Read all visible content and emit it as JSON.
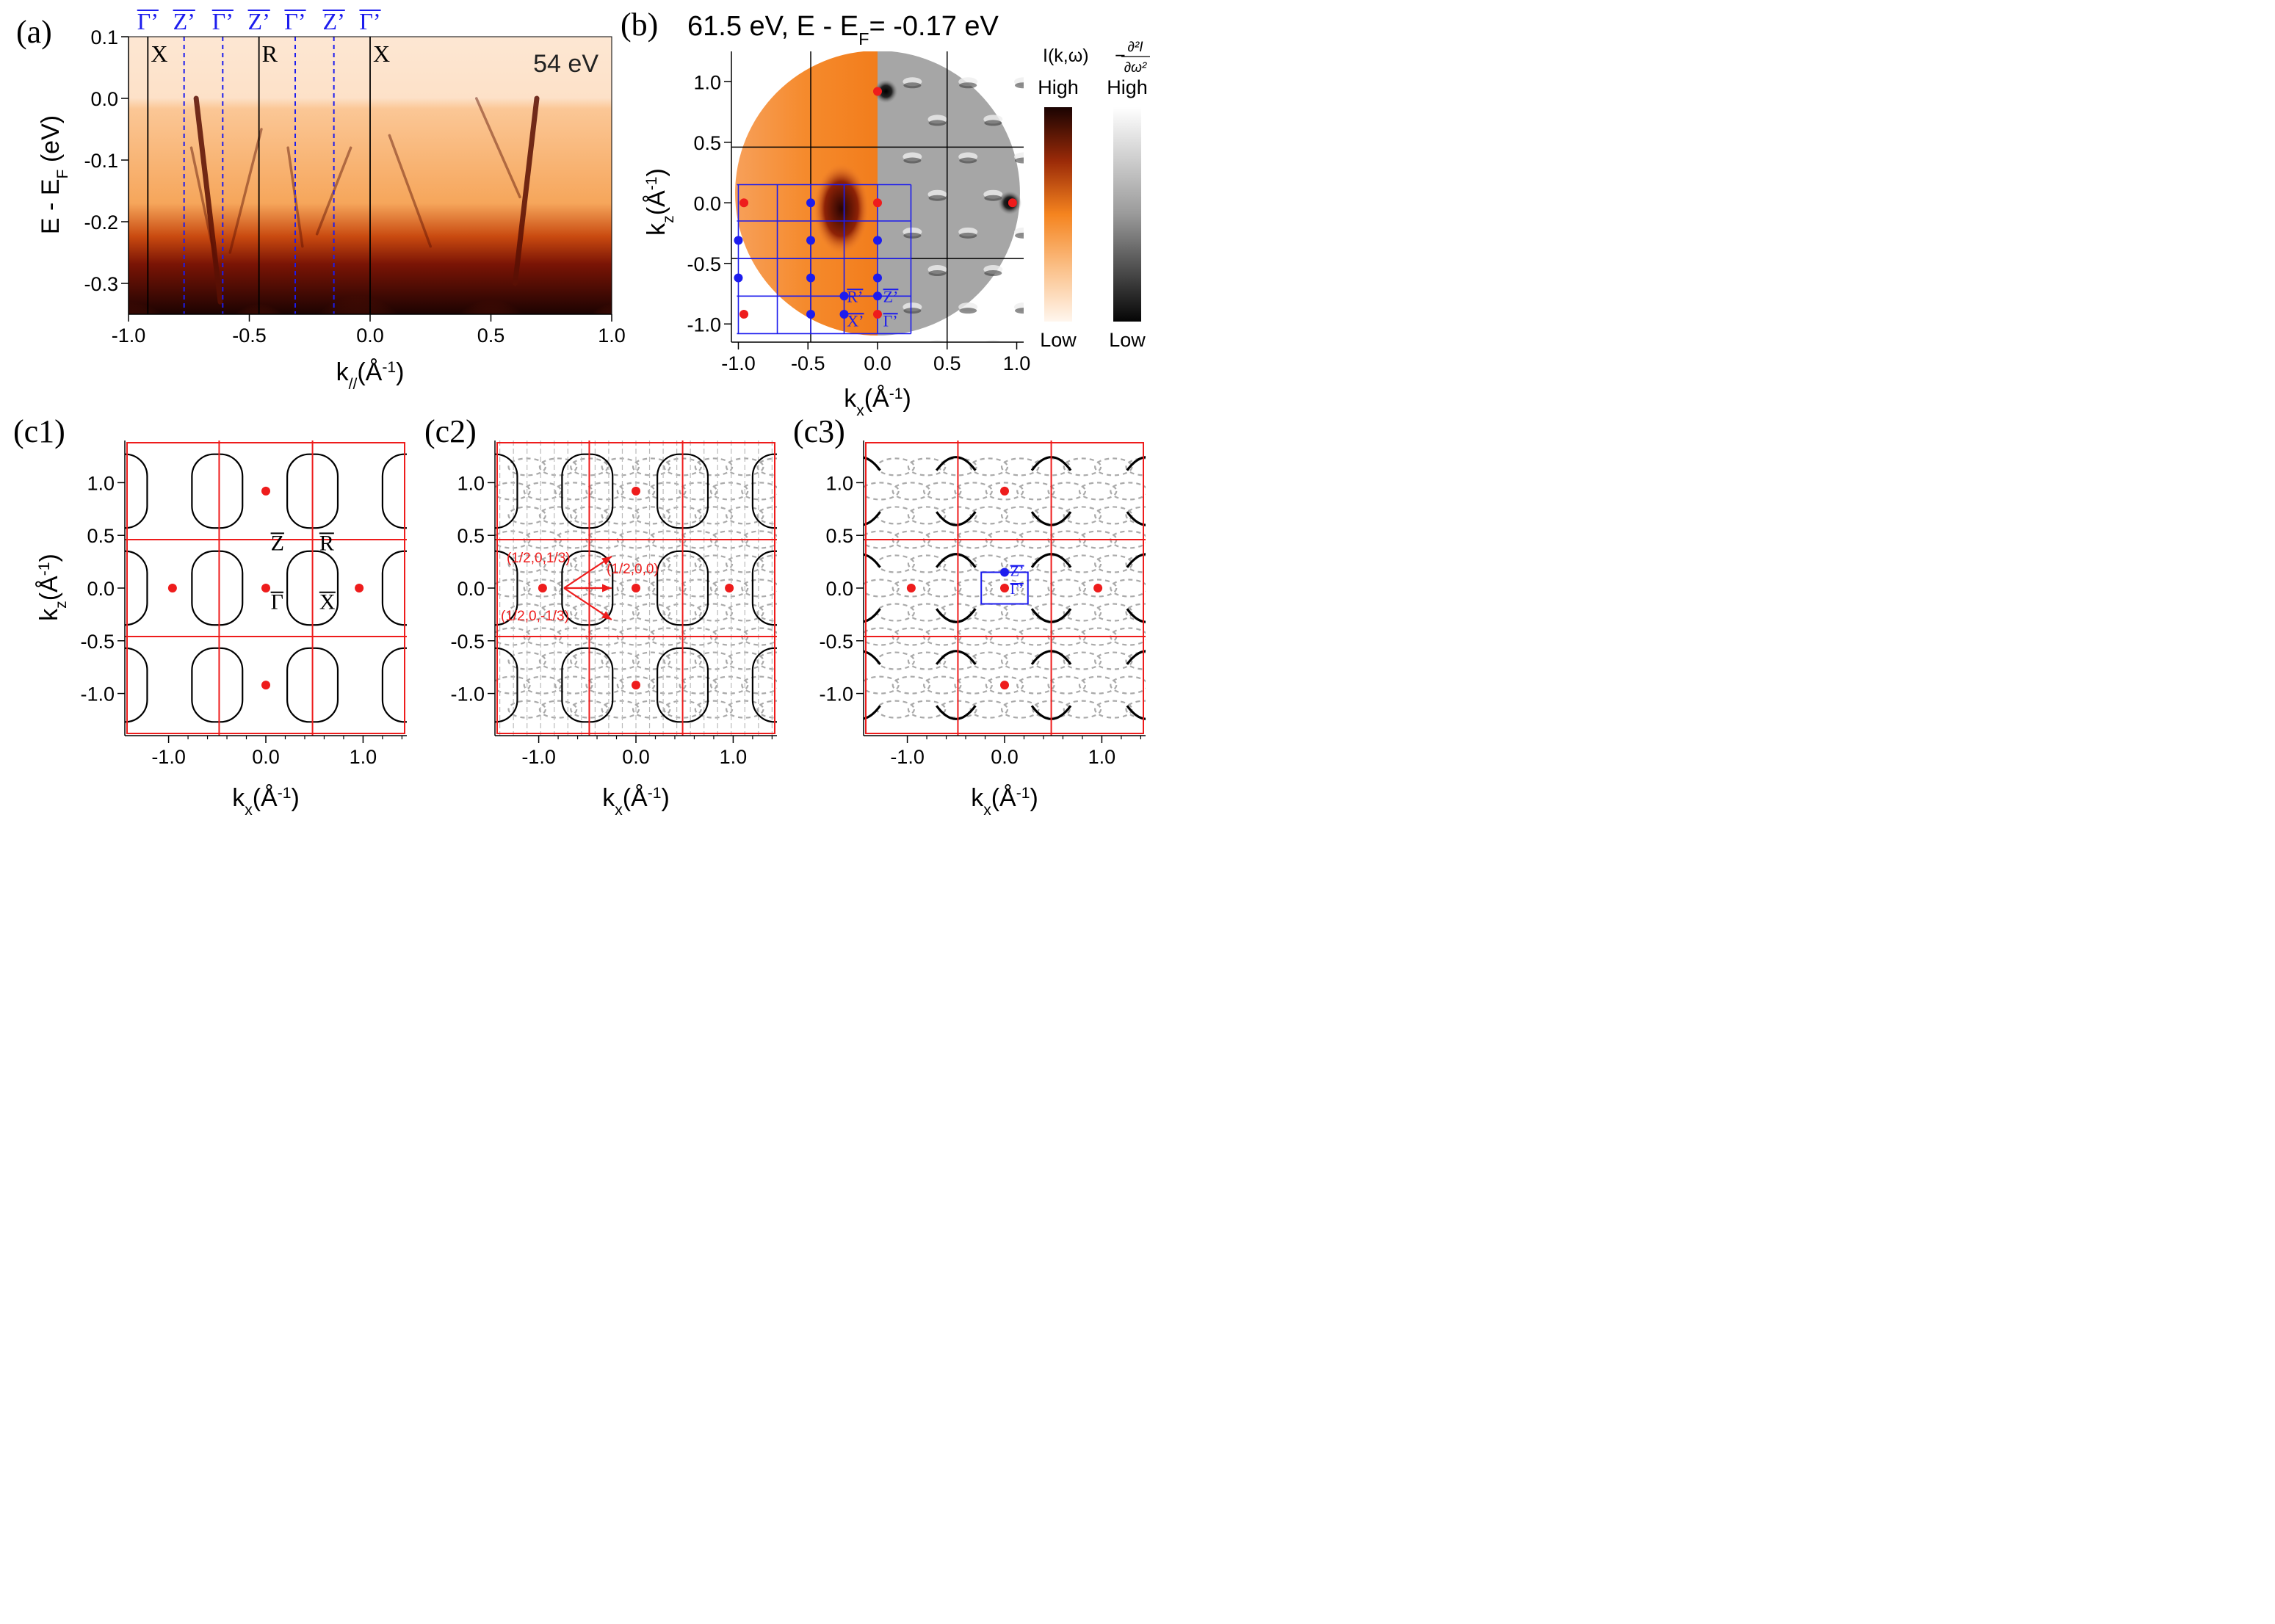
{
  "figure": {
    "colors": {
      "red": "#ee1c1c",
      "blue": "#1c1cee",
      "black": "#000000",
      "gray_dash": "#aaaaaa",
      "orange_low": "#fde9d9",
      "orange_mid": "#f58c2a",
      "orange_high": "#1a0302"
    }
  },
  "chart_data": [
    {
      "panel": "(a)",
      "type": "heatmap",
      "title": "",
      "annotation": "54 eV",
      "xlabel_main": "k",
      "xlabel_sub": "//",
      "xlabel_rest": "(Å",
      "xlabel_sup": "-1",
      "xlabel_close": ")",
      "ylabel_main": "E - E",
      "ylabel_sub": "F",
      "ylabel_rest": " (eV)",
      "xlim": [
        -1.0,
        1.0
      ],
      "ylim": [
        -0.35,
        0.1
      ],
      "xticks": [
        -1.0,
        -0.5,
        0.0,
        0.5,
        1.0
      ],
      "xtick_labels": [
        "-1.0",
        "-0.5",
        "0.0",
        "0.5",
        "1.0"
      ],
      "yticks": [
        0.1,
        0.0,
        -0.1,
        -0.2,
        -0.3
      ],
      "ytick_labels": [
        "0.1",
        "0.0",
        "-0.1",
        "-0.2",
        "-0.3"
      ],
      "black_lines_x": [
        -0.92,
        -0.46,
        0.0
      ],
      "black_labels": [
        {
          "x": -0.92,
          "text": "X"
        },
        {
          "x": -0.46,
          "text": "R"
        },
        {
          "x": 0.0,
          "text": "X"
        }
      ],
      "blue_dashed_x": [
        -0.77,
        -0.61,
        -0.31,
        -0.15
      ],
      "top_labels": [
        {
          "x": -0.92,
          "text": "Γ’"
        },
        {
          "x": -0.77,
          "text": "Z’"
        },
        {
          "x": -0.61,
          "text": "Γ’"
        },
        {
          "x": -0.46,
          "text": "Z’"
        },
        {
          "x": -0.31,
          "text": "Γ’"
        },
        {
          "x": -0.15,
          "text": "Z’"
        },
        {
          "x": 0.0,
          "text": "Γ’"
        }
      ],
      "fermi_level": 0.0,
      "bands": [
        {
          "from": [
            -0.72,
            0.0
          ],
          "to": [
            -0.62,
            -0.33
          ]
        },
        {
          "from": [
            -0.74,
            -0.08
          ],
          "to": [
            -0.62,
            -0.3
          ]
        },
        {
          "from": [
            -0.45,
            -0.05
          ],
          "to": [
            -0.58,
            -0.25
          ]
        },
        {
          "from": [
            -0.34,
            -0.08
          ],
          "to": [
            -0.28,
            -0.24
          ]
        },
        {
          "from": [
            -0.08,
            -0.08
          ],
          "to": [
            -0.22,
            -0.22
          ]
        },
        {
          "from": [
            0.08,
            -0.06
          ],
          "to": [
            0.25,
            -0.24
          ]
        },
        {
          "from": [
            0.44,
            0.0
          ],
          "to": [
            0.62,
            -0.16
          ]
        },
        {
          "from": [
            0.69,
            0.0
          ],
          "to": [
            0.6,
            -0.3
          ]
        }
      ]
    },
    {
      "panel": "(b)",
      "type": "heatmap",
      "title": "61.5 eV, E - E",
      "title_sub": "F",
      "title_tail": "= -0.17 eV",
      "xlabel_main": "k",
      "xlabel_sub": "x",
      "xlabel_rest": "(Å",
      "xlabel_sup": "-1",
      "xlabel_close": ")",
      "ylabel_main": "k",
      "ylabel_sub": "z",
      "ylabel_rest": "(Å",
      "ylabel_sup": "-1",
      "ylabel_close": ")",
      "xlim": [
        -1.05,
        1.05
      ],
      "ylim": [
        -1.15,
        1.25
      ],
      "xticks": [
        -1.0,
        -0.5,
        0.0,
        0.5,
        1.0
      ],
      "xtick_labels": [
        "-1.0",
        "-0.5",
        "0.0",
        "0.5",
        "1.0"
      ],
      "yticks": [
        1.0,
        0.5,
        0.0,
        -0.5,
        -1.0
      ],
      "ytick_labels": [
        "1.0",
        "0.5",
        "0.0",
        "-0.5",
        "-1.0"
      ],
      "black_lines_x": [
        -0.48,
        0.5
      ],
      "black_lines_z": [
        0.46,
        -0.46
      ],
      "red_points": [
        [
          0.0,
          0.92
        ],
        [
          -0.96,
          0.0
        ],
        [
          0.0,
          0.0
        ],
        [
          0.97,
          0.0
        ],
        [
          -0.96,
          -0.92
        ],
        [
          0.0,
          -0.92
        ]
      ],
      "blue_points": [
        [
          -0.48,
          0.0
        ],
        [
          -1.0,
          -0.31
        ],
        [
          -0.48,
          -0.31
        ],
        [
          0.0,
          -0.31
        ],
        [
          -1.0,
          -0.62
        ],
        [
          -0.48,
          -0.62
        ],
        [
          0.0,
          -0.62
        ],
        [
          -0.24,
          -0.77
        ],
        [
          0.0,
          -0.77
        ],
        [
          -0.48,
          -0.92
        ],
        [
          -0.24,
          -0.92
        ]
      ],
      "blue_grid_x": [
        -1.0,
        -0.72,
        -0.48,
        -0.24,
        0.0,
        0.24
      ],
      "blue_grid_z": [
        0.15,
        -0.15,
        -0.46,
        -0.77,
        -1.08
      ],
      "point_labels": [
        {
          "x": -0.22,
          "z": -0.77,
          "text": "R’"
        },
        {
          "x": 0.04,
          "z": -0.77,
          "text": "Z’"
        },
        {
          "x": -0.22,
          "z": -0.97,
          "text": "X’"
        },
        {
          "x": 0.04,
          "z": -0.97,
          "text": "Γ’"
        }
      ],
      "colorbar_left": {
        "title": "I(k,ω)",
        "high": "High",
        "low": "Low"
      },
      "colorbar_right": {
        "title_prefix": "−",
        "numerator": "∂²I",
        "denominator": "∂ω²",
        "high": "High",
        "low": "Low"
      }
    },
    {
      "panel": "(c1)",
      "type": "scatter",
      "xlabel_main": "k",
      "xlabel_sub": "x",
      "xlabel_rest": "(Å",
      "xlabel_sup": "-1",
      "xlabel_close": ")",
      "ylabel_main": "k",
      "ylabel_sub": "z",
      "ylabel_rest": "(Å",
      "ylabel_sup": "-1",
      "ylabel_close": ")",
      "xlim": [
        -1.45,
        1.45
      ],
      "ylim": [
        -1.4,
        1.4
      ],
      "xticks": [
        -1.0,
        0.0,
        1.0
      ],
      "xtick_labels": [
        "-1.0",
        "0.0",
        "1.0"
      ],
      "yticks": [
        1.0,
        0.5,
        0.0,
        -0.5,
        -1.0
      ],
      "ytick_labels": [
        "1.0",
        "0.5",
        "0.0",
        "-0.5",
        "-1.0"
      ],
      "red_lines_x": [
        -0.48,
        0.48
      ],
      "red_lines_z": [
        0.46,
        -0.46
      ],
      "red_points": [
        [
          0.0,
          0.92
        ],
        [
          -0.96,
          0.0
        ],
        [
          0.0,
          0.0
        ],
        [
          0.96,
          0.0
        ],
        [
          0.0,
          -0.92
        ]
      ],
      "point_labels": [
        {
          "x": 0.05,
          "z": 0.36,
          "text": "Z"
        },
        {
          "x": 0.55,
          "z": 0.36,
          "text": "R"
        },
        {
          "x": 0.05,
          "z": -0.2,
          "text": "Γ"
        },
        {
          "x": 0.55,
          "z": -0.2,
          "text": "X"
        }
      ]
    },
    {
      "panel": "(c2)",
      "type": "scatter",
      "xlabel_main": "k",
      "xlabel_sub": "x",
      "xlabel_rest": "(Å",
      "xlabel_sup": "-1",
      "xlabel_close": ")",
      "xlim": [
        -1.45,
        1.45
      ],
      "ylim": [
        -1.4,
        1.4
      ],
      "xticks": [
        -1.0,
        0.0,
        1.0
      ],
      "xtick_labels": [
        "-1.0",
        "0.0",
        "1.0"
      ],
      "yticks": [
        1.0,
        0.5,
        0.0,
        -0.5,
        -1.0
      ],
      "ytick_labels": [
        "1.0",
        "0.5",
        "0.0",
        "-0.5",
        "-1.0"
      ],
      "red_lines_x": [
        -0.48,
        0.48
      ],
      "red_lines_z": [
        0.46,
        -0.46
      ],
      "red_points": [
        [
          0.0,
          0.92
        ],
        [
          -0.96,
          0.0
        ],
        [
          0.0,
          0.0
        ],
        [
          0.96,
          0.0
        ],
        [
          0.0,
          -0.92
        ]
      ],
      "vectors": [
        {
          "from": [
            -0.74,
            0.0
          ],
          "to": [
            -0.25,
            0.3
          ],
          "text": "(1/2,0,1/3)"
        },
        {
          "from": [
            -0.74,
            0.0
          ],
          "to": [
            -0.25,
            0.0
          ],
          "text": "(1/2,0,0)"
        },
        {
          "from": [
            -0.74,
            0.0
          ],
          "to": [
            -0.25,
            -0.3
          ],
          "text": "(1/2,0,-1/3)"
        }
      ]
    },
    {
      "panel": "(c3)",
      "type": "scatter",
      "xlabel_main": "k",
      "xlabel_sub": "x",
      "xlabel_rest": "(Å",
      "xlabel_sup": "-1",
      "xlabel_close": ")",
      "xlim": [
        -1.45,
        1.45
      ],
      "ylim": [
        -1.4,
        1.4
      ],
      "xticks": [
        -1.0,
        0.0,
        1.0
      ],
      "xtick_labels": [
        "-1.0",
        "0.0",
        "1.0"
      ],
      "yticks": [
        1.0,
        0.5,
        0.0,
        -0.5,
        -1.0
      ],
      "ytick_labels": [
        "1.0",
        "0.5",
        "0.0",
        "-0.5",
        "-1.0"
      ],
      "red_lines_x": [
        -0.48,
        0.48
      ],
      "red_lines_z": [
        0.46,
        -0.46
      ],
      "red_points": [
        [
          0.0,
          0.92
        ],
        [
          -0.96,
          0.0
        ],
        [
          0.0,
          0.0
        ],
        [
          0.96,
          0.0
        ],
        [
          0.0,
          -0.92
        ]
      ],
      "blue_points": [
        [
          0.0,
          0.15
        ]
      ],
      "blue_box": {
        "x": [
          -0.24,
          0.24
        ],
        "z": [
          -0.15,
          0.15
        ]
      },
      "point_labels": [
        {
          "x": 0.08,
          "z": 0.17,
          "text": "Z’"
        },
        {
          "x": 0.08,
          "z": 0.0,
          "text": "Γ’"
        }
      ]
    }
  ]
}
